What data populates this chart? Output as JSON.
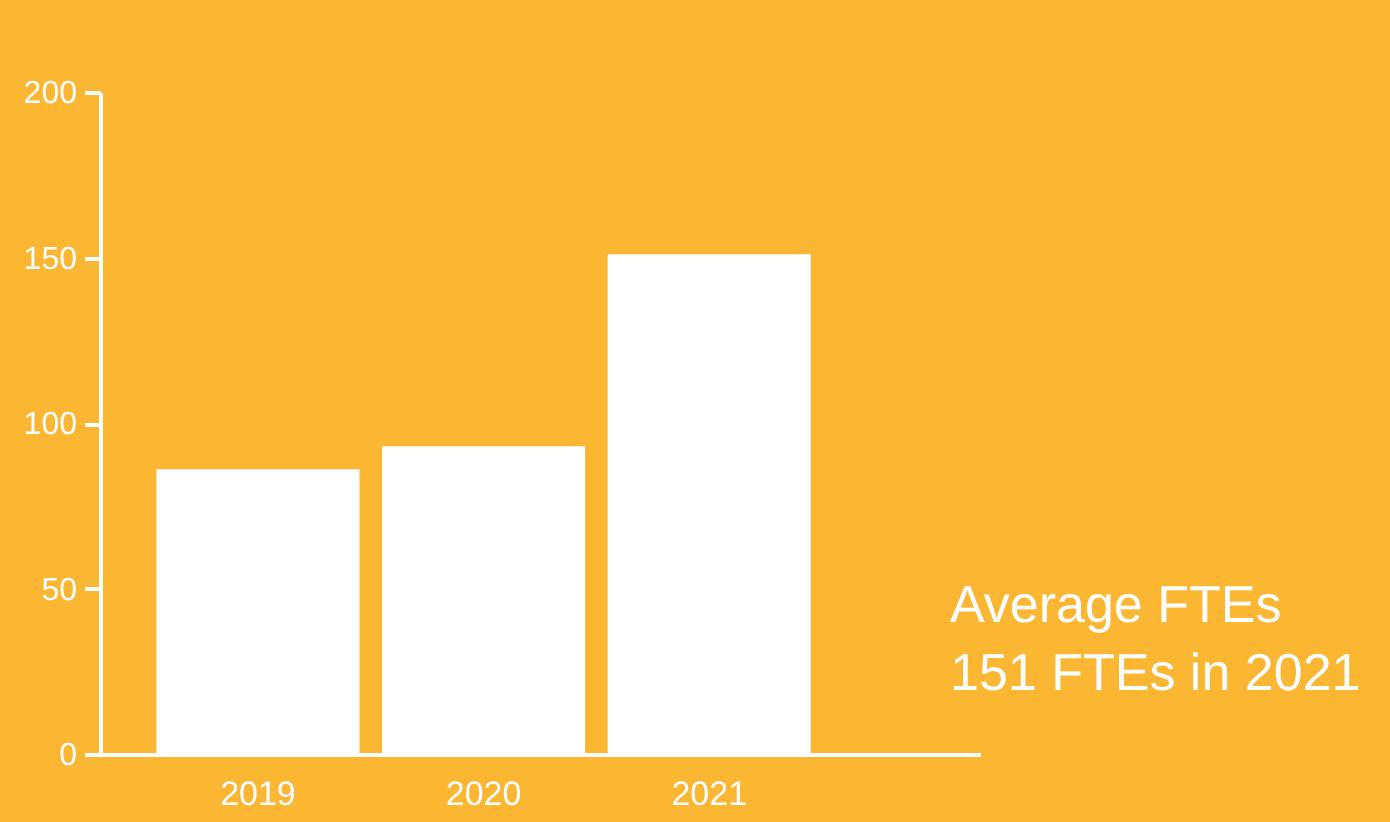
{
  "chart_data": {
    "type": "bar",
    "categories": [
      "2019",
      "2020",
      "2021"
    ],
    "values": [
      86,
      93,
      151
    ],
    "color": "#ffffff",
    "ylim": [
      0,
      200
    ],
    "yticks": [
      0,
      50,
      100,
      150,
      200
    ],
    "grid": false,
    "annotations": [
      "Average FTEs",
      "151 FTEs in 2021"
    ]
  }
}
